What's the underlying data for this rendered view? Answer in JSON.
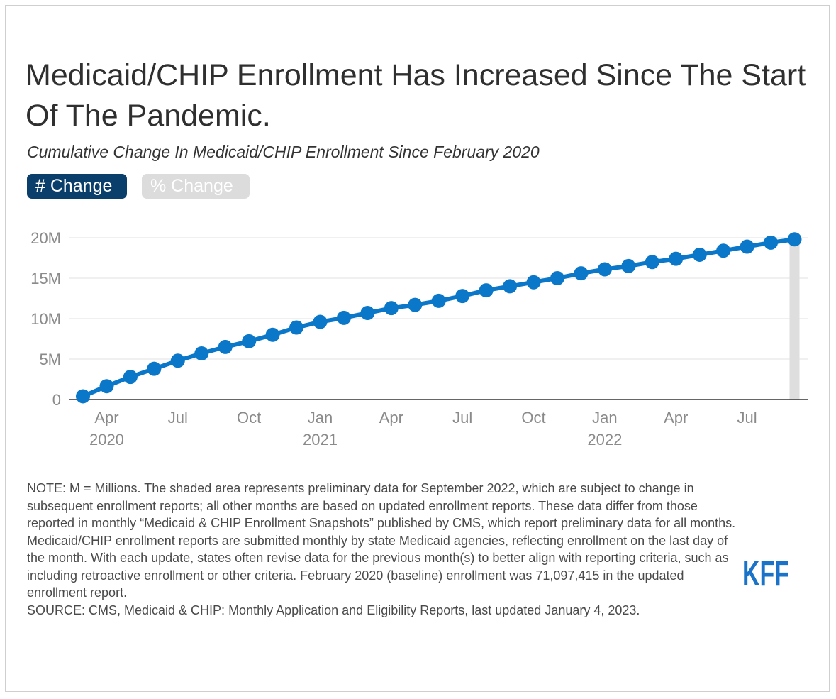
{
  "title": "Medicaid/CHIP Enrollment Has Increased Since The Start Of The Pandemic.",
  "subtitle": "Cumulative Change In Medicaid/CHIP Enrollment Since February 2020",
  "toggles": {
    "active": "# Change",
    "inactive": "% Change"
  },
  "chart_data": {
    "type": "line",
    "title": "Cumulative Change In Medicaid/CHIP Enrollment Since February 2020",
    "xlabel": "",
    "ylabel": "",
    "ylim": [
      0,
      20000000
    ],
    "y_ticks": [
      {
        "value": 0,
        "label": "0"
      },
      {
        "value": 5000000,
        "label": "5M"
      },
      {
        "value": 10000000,
        "label": "10M"
      },
      {
        "value": 15000000,
        "label": "15M"
      },
      {
        "value": 20000000,
        "label": "20M"
      }
    ],
    "x_ticks": [
      {
        "index": 1,
        "label": "Apr",
        "year": "2020"
      },
      {
        "index": 4,
        "label": "Jul",
        "year": ""
      },
      {
        "index": 7,
        "label": "Oct",
        "year": ""
      },
      {
        "index": 10,
        "label": "Jan",
        "year": "2021"
      },
      {
        "index": 13,
        "label": "Apr",
        "year": ""
      },
      {
        "index": 16,
        "label": "Jul",
        "year": ""
      },
      {
        "index": 19,
        "label": "Oct",
        "year": ""
      },
      {
        "index": 22,
        "label": "Jan",
        "year": "2022"
      },
      {
        "index": 25,
        "label": "Apr",
        "year": ""
      },
      {
        "index": 28,
        "label": "Jul",
        "year": ""
      }
    ],
    "x": [
      "Mar 2020",
      "Apr 2020",
      "May 2020",
      "Jun 2020",
      "Jul 2020",
      "Aug 2020",
      "Sep 2020",
      "Oct 2020",
      "Nov 2020",
      "Dec 2020",
      "Jan 2021",
      "Feb 2021",
      "Mar 2021",
      "Apr 2021",
      "May 2021",
      "Jun 2021",
      "Jul 2021",
      "Aug 2021",
      "Sep 2021",
      "Oct 2021",
      "Nov 2021",
      "Dec 2021",
      "Jan 2022",
      "Feb 2022",
      "Mar 2022",
      "Apr 2022",
      "May 2022",
      "Jun 2022",
      "Jul 2022",
      "Aug 2022",
      "Sep 2022"
    ],
    "series": [
      {
        "name": "# Change",
        "color": "#0a77c9",
        "values": [
          400000,
          1650000,
          2800000,
          3800000,
          4800000,
          5700000,
          6500000,
          7200000,
          8000000,
          8900000,
          9600000,
          10100000,
          10700000,
          11300000,
          11700000,
          12200000,
          12800000,
          13500000,
          14000000,
          14500000,
          15000000,
          15600000,
          16100000,
          16500000,
          17000000,
          17400000,
          17900000,
          18400000,
          18900000,
          19400000,
          19800000
        ]
      }
    ],
    "preliminary_index": 30,
    "shade_color": "#dedede"
  },
  "notes": {
    "note": "NOTE: M = Millions. The shaded area represents preliminary data for September 2022, which are subject to change in subsequent enrollment reports; all other months are based on updated enrollment reports. These data differ from those reported in monthly “Medicaid & CHIP Enrollment Snapshots” published by CMS, which report preliminary data for all months. Medicaid/CHIP enrollment reports are submitted monthly by state Medicaid agencies, reflecting enrollment on the last day of the month. With each update, states often revise data for the previous month(s) to better align with reporting criteria, such as including retroactive enrollment or other criteria. February 2020 (baseline) enrollment was 71,097,415 in the updated enrollment report.",
    "source": "SOURCE: CMS, Medicaid & CHIP: Monthly Application and Eligibility Reports, last updated January 4, 2023."
  },
  "logo": {
    "text": "KFF",
    "color": "#1a73c8"
  }
}
